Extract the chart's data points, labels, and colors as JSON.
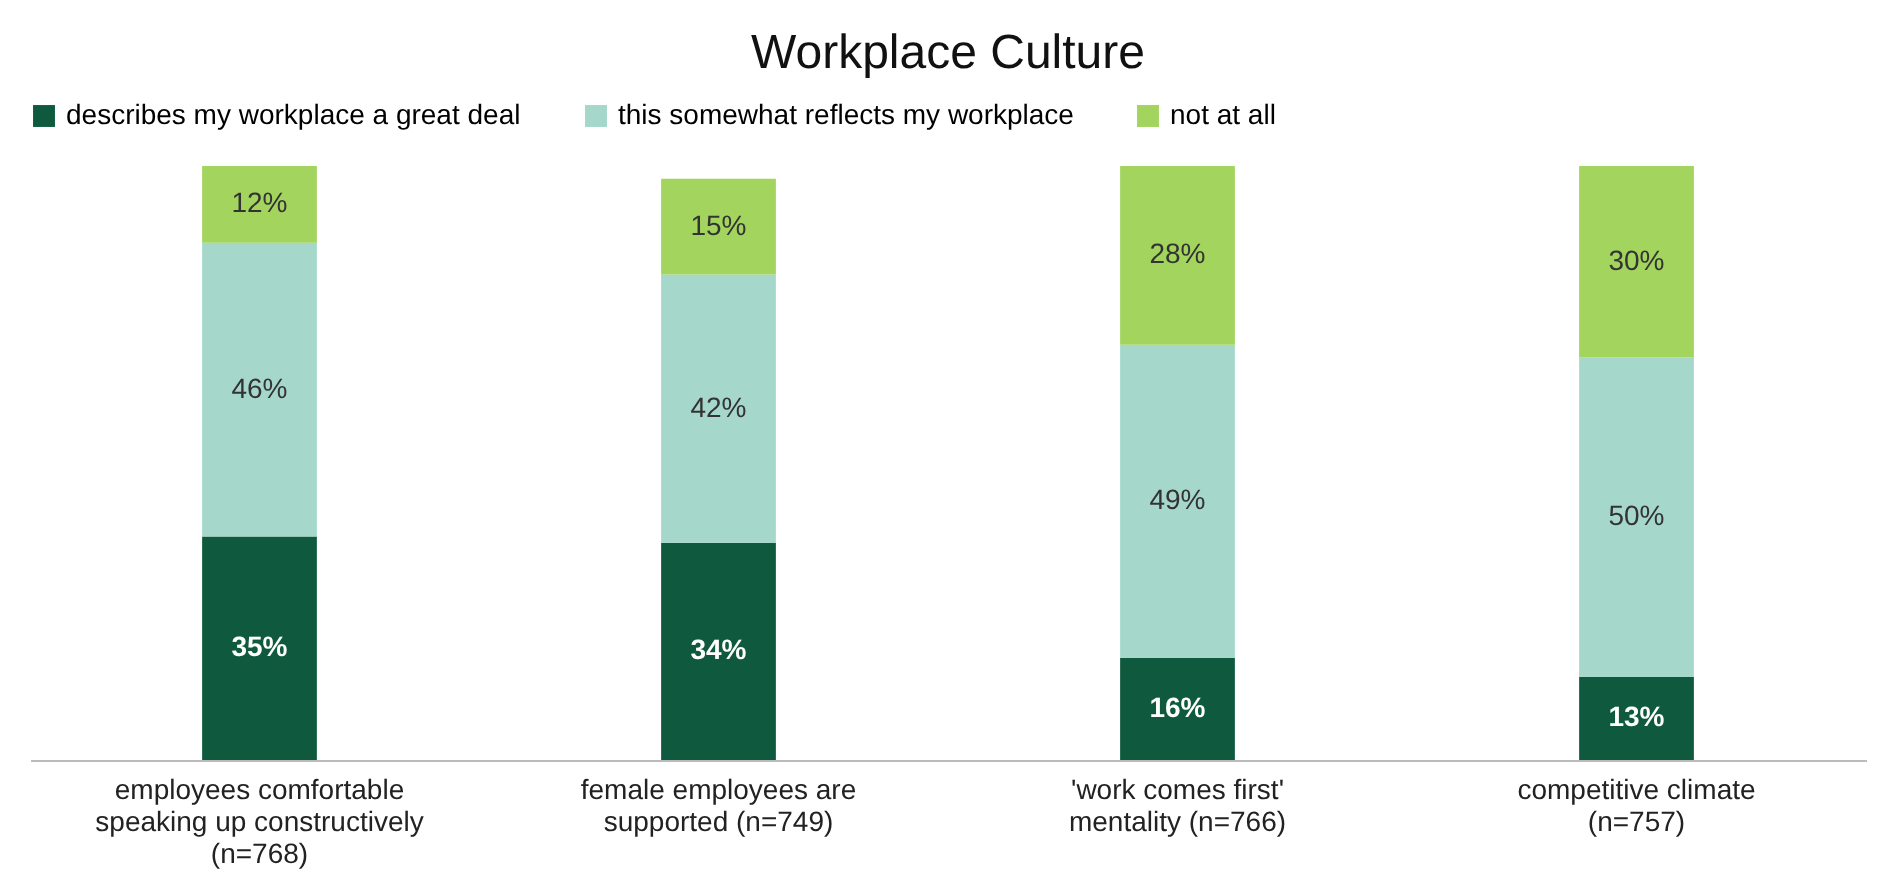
{
  "chart_data": {
    "type": "bar",
    "stacked": true,
    "title": "Workplace Culture",
    "categories": [
      "employees comfortable speaking up constructively (n=768)",
      "female employees are supported (n=749)",
      "'work comes first' mentality (n=766)",
      "competitive climate (n=757)"
    ],
    "series": [
      {
        "name": "describes my workplace a great deal",
        "color": "#0f5a3e",
        "values": [
          35,
          34,
          16,
          13
        ],
        "value_labels": [
          "35%",
          "34%",
          "16%",
          "13%"
        ]
      },
      {
        "name": "this somewhat reflects my workplace",
        "color": "#a5d8cb",
        "values": [
          46,
          42,
          49,
          50
        ],
        "value_labels": [
          "46%",
          "42%",
          "49%",
          "50%"
        ]
      },
      {
        "name": "not at all",
        "color": "#a2d45e",
        "values": [
          12,
          15,
          28,
          30
        ],
        "value_labels": [
          "12%",
          "15%",
          "28%",
          "30%"
        ]
      }
    ],
    "legend": "top",
    "grid": false
  }
}
